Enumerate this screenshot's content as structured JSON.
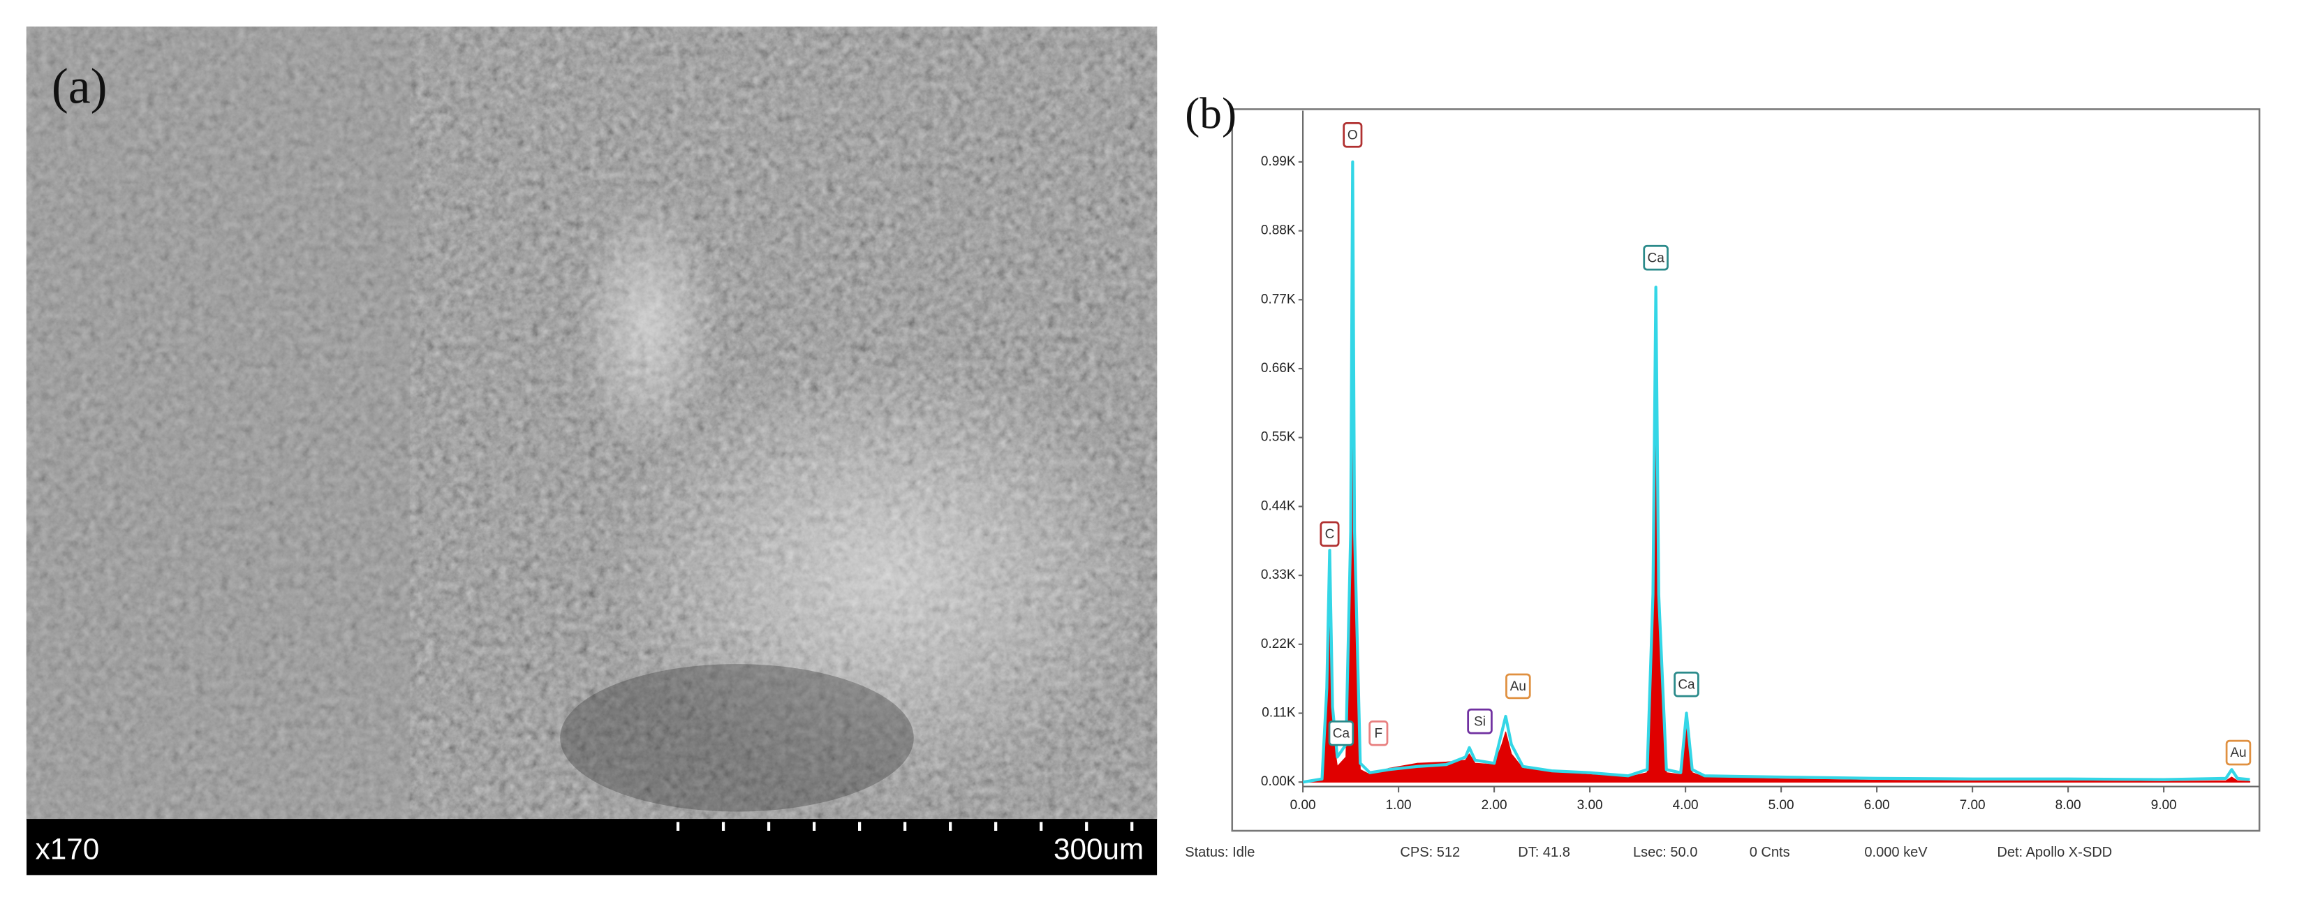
{
  "panel_a": {
    "label": "(a)",
    "magnification": "x170",
    "scale_bar": "300um"
  },
  "panel_b_label": "(b)",
  "chart_data": {
    "type": "line",
    "x": [
      0,
      0.2,
      0.25,
      0.28,
      0.31,
      0.36,
      0.45,
      0.5,
      0.52,
      0.54,
      0.6,
      0.7,
      0.9,
      1.2,
      1.5,
      1.7,
      1.74,
      1.8,
      2.0,
      2.08,
      2.12,
      2.18,
      2.3,
      2.6,
      3.0,
      3.4,
      3.6,
      3.66,
      3.69,
      3.72,
      3.8,
      3.95,
      4.01,
      4.07,
      4.2,
      5,
      6,
      7,
      8,
      9,
      9.65,
      9.71,
      9.77,
      9.9
    ],
    "series": [
      {
        "color": "#e00000",
        "fill": true,
        "values": [
          0,
          3,
          100,
          300,
          80,
          25,
          40,
          300,
          850,
          300,
          20,
          12,
          22,
          30,
          32,
          35,
          45,
          30,
          28,
          60,
          80,
          45,
          22,
          16,
          12,
          8,
          15,
          250,
          650,
          250,
          15,
          12,
          90,
          15,
          8,
          5,
          3,
          2,
          2,
          1,
          2,
          8,
          2,
          1
        ]
      },
      {
        "color": "#33d6e6",
        "fill": false,
        "values": [
          0,
          5,
          150,
          370,
          120,
          40,
          60,
          400,
          990,
          400,
          30,
          15,
          20,
          25,
          28,
          40,
          55,
          35,
          30,
          80,
          105,
          60,
          25,
          18,
          15,
          10,
          20,
          300,
          790,
          300,
          20,
          15,
          110,
          20,
          10,
          8,
          6,
          5,
          5,
          4,
          6,
          20,
          6,
          4
        ]
      }
    ],
    "xlim": [
      0,
      10
    ],
    "ylim": [
      0,
      1060
    ],
    "xticks": [
      {
        "value": 0,
        "label": "0.00"
      },
      {
        "value": 1,
        "label": "1.00"
      },
      {
        "value": 2,
        "label": "2.00"
      },
      {
        "value": 3,
        "label": "3.00"
      },
      {
        "value": 4,
        "label": "4.00"
      },
      {
        "value": 5,
        "label": "5.00"
      },
      {
        "value": 6,
        "label": "6.00"
      },
      {
        "value": 7,
        "label": "7.00"
      },
      {
        "value": 8,
        "label": "8.00"
      },
      {
        "value": 9,
        "label": "9.00"
      }
    ],
    "yticks": [
      {
        "value": 0,
        "label": "0.00K"
      },
      {
        "value": 110,
        "label": "0.11K"
      },
      {
        "value": 220,
        "label": "0.22K"
      },
      {
        "value": 330,
        "label": "0.33K"
      },
      {
        "value": 440,
        "label": "0.44K"
      },
      {
        "value": 550,
        "label": "0.55K"
      },
      {
        "value": 660,
        "label": "0.66K"
      },
      {
        "value": 770,
        "label": "0.77K"
      },
      {
        "value": 880,
        "label": "0.88K"
      },
      {
        "value": 990,
        "label": "0.99K"
      }
    ],
    "peak_labels": [
      {
        "text": "O",
        "x": 0.52,
        "y": 1033,
        "color": "#b03030"
      },
      {
        "text": "C",
        "x": 0.28,
        "y": 396,
        "color": "#b03030"
      },
      {
        "text": "Ca",
        "x": 3.69,
        "y": 837,
        "color": "#2a8a8a"
      },
      {
        "text": "Ca",
        "x": 4.01,
        "y": 156,
        "color": "#2a8a8a"
      },
      {
        "text": "Ca",
        "x": 0.4,
        "y": 78,
        "color": "#2a8a8a"
      },
      {
        "text": "F",
        "x": 0.79,
        "y": 78,
        "color": "#e88080"
      },
      {
        "text": "Si",
        "x": 1.85,
        "y": 97,
        "color": "#7030a0"
      },
      {
        "text": "Au",
        "x": 2.25,
        "y": 153,
        "color": "#e09040"
      },
      {
        "text": "Au",
        "x": 9.78,
        "y": 47,
        "color": "#e09040"
      }
    ]
  },
  "status_bar": [
    "Status: Idle",
    "CPS: 512",
    "DT: 41.8",
    "Lsec: 50.0",
    "0 Cnts",
    "0.000 keV",
    "Det: Apollo X-SDD"
  ]
}
